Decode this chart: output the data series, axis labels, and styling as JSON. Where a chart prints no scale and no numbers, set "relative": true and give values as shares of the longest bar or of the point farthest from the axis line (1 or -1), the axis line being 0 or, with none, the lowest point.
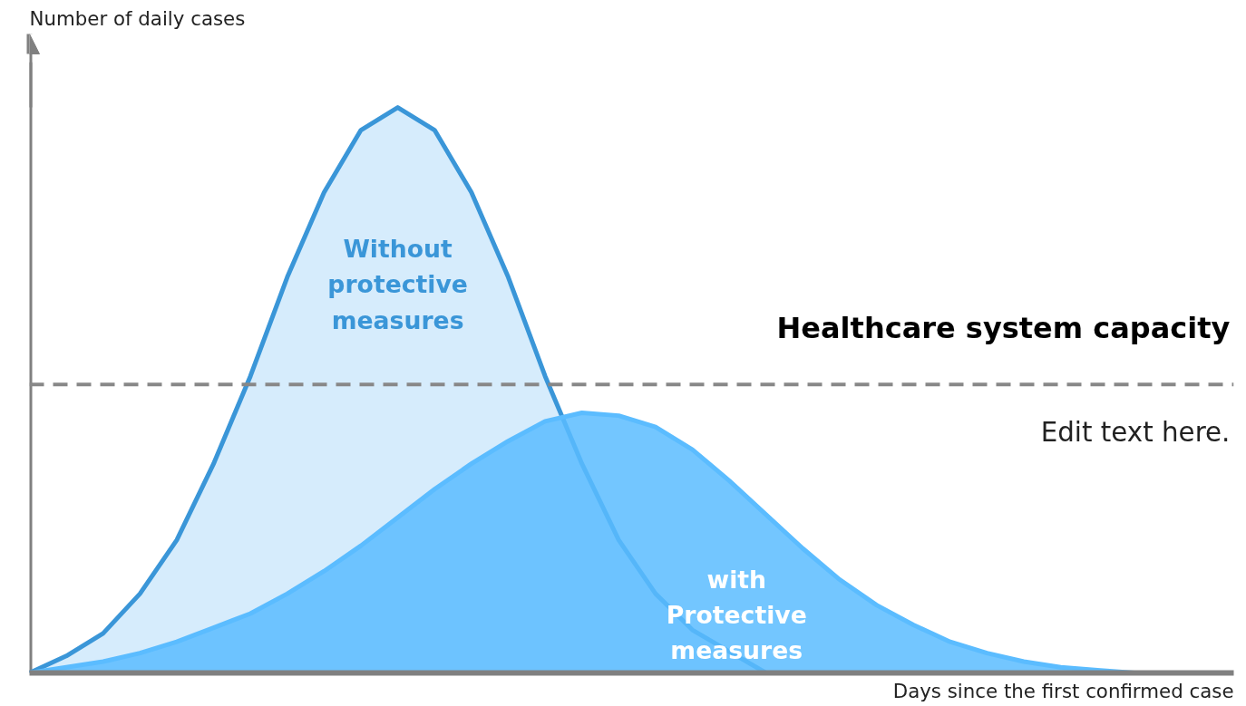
{
  "chart_data": {
    "type": "area",
    "relative": true,
    "xlabel": "Days since the first confirmed case",
    "ylabel": "Number of daily cases",
    "categories": [
      null,
      null,
      null,
      null,
      null,
      null,
      null,
      null,
      null,
      null,
      null,
      null,
      null,
      null,
      null,
      null,
      null,
      null,
      null,
      null,
      null,
      null,
      null,
      null,
      null,
      null,
      null,
      null,
      null,
      null,
      null,
      null,
      null
    ],
    "series": [
      {
        "name": "Without protective measures",
        "color": "#3a96d8",
        "values": [
          0,
          0.03,
          0.07,
          0.14,
          0.235,
          0.37,
          0.525,
          0.7,
          0.85,
          0.96,
          1,
          0.96,
          0.85,
          0.7,
          0.525,
          0.37,
          0.235,
          0.14,
          0.076,
          0.038,
          0,
          null,
          null,
          null,
          null,
          null,
          null,
          null,
          null,
          null,
          null,
          null,
          null
        ]
      },
      {
        "name": "with Protective measures",
        "color": "#5bbcff",
        "values": [
          0,
          0.01,
          0.02,
          0.035,
          0.055,
          0.08,
          0.105,
          0.14,
          0.18,
          0.225,
          0.275,
          0.325,
          0.37,
          0.41,
          0.445,
          0.46,
          0.455,
          0.435,
          0.395,
          0.34,
          0.28,
          0.22,
          0.165,
          0.12,
          0.085,
          0.055,
          0.035,
          0.02,
          0.01,
          0.005,
          0,
          null,
          null
        ]
      }
    ],
    "ref_lines": [
      {
        "axis": "y",
        "value": 0.51,
        "label": "Healthcare system capacity",
        "color": "#888888",
        "line_style": "dashed"
      }
    ],
    "annotations": [
      "Edit text here."
    ],
    "grid": false,
    "marker": "none",
    "line_style": "solid"
  }
}
